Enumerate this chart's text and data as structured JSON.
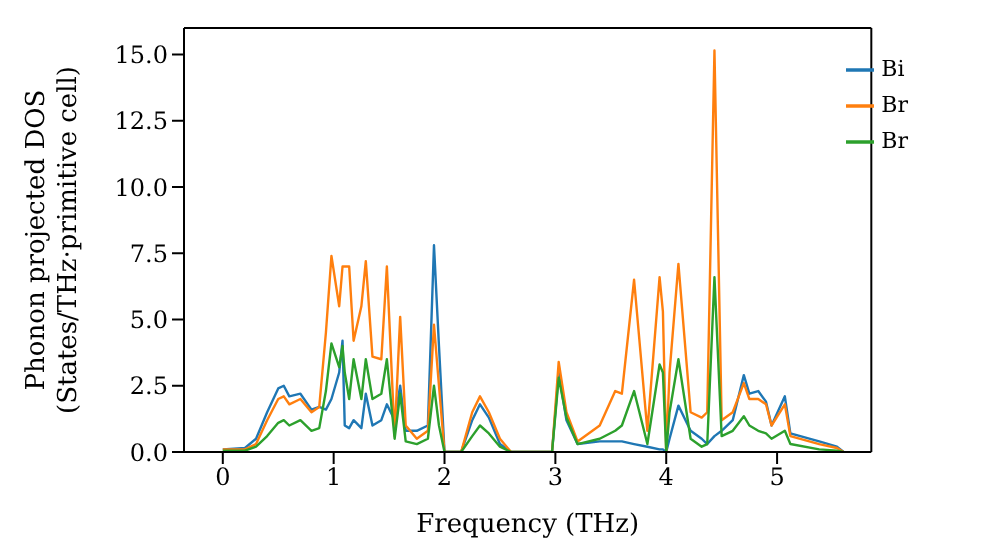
{
  "chart_data": {
    "type": "line",
    "xlabel": "Frequency (THz)",
    "ylabel": "Phonon projected DOS\n(States/THz·primitive cell)",
    "x": [
      0,
      0.2,
      0.3,
      0.4,
      0.5,
      0.55,
      0.6,
      0.7,
      0.8,
      0.87,
      0.93,
      0.98,
      1.05,
      1.08,
      1.1,
      1.14,
      1.18,
      1.25,
      1.29,
      1.35,
      1.43,
      1.48,
      1.55,
      1.6,
      1.65,
      1.75,
      1.85,
      1.905,
      1.95,
      2.0,
      2.15,
      2.25,
      2.32,
      2.4,
      2.5,
      2.6,
      2.97,
      3.03,
      3.1,
      3.2,
      3.4,
      3.54,
      3.6,
      3.71,
      3.83,
      3.94,
      3.97,
      4.0,
      4.03,
      4.11,
      4.22,
      4.32,
      4.37,
      4.435,
      4.5,
      4.6,
      4.7,
      4.75,
      4.83,
      4.9,
      4.95,
      5.07,
      5.12,
      5.38,
      5.54,
      5.6
    ],
    "series": [
      {
        "name": "Bi",
        "color": "#1f77b4",
        "values": [
          0.1,
          0.15,
          0.5,
          1.5,
          2.4,
          2.5,
          2.1,
          2.2,
          1.6,
          1.7,
          1.6,
          2.0,
          3.0,
          4.2,
          1.0,
          0.9,
          1.2,
          0.9,
          2.2,
          1.0,
          1.2,
          1.8,
          1.2,
          2.5,
          0.8,
          0.8,
          1.0,
          7.8,
          4.0,
          0,
          0,
          1.2,
          1.8,
          1.3,
          0.3,
          0,
          0,
          3.0,
          1.2,
          0.3,
          0.4,
          0.4,
          0.4,
          0.3,
          0.2,
          0.1,
          0.1,
          0,
          0.5,
          1.75,
          0.8,
          0.5,
          0.3,
          0.6,
          0.8,
          1.2,
          2.9,
          2.2,
          2.3,
          1.9,
          1.0,
          2.1,
          0.7,
          0.4,
          0.2,
          0
        ]
      },
      {
        "name": "Br",
        "color": "#ff7f0e",
        "values": [
          0.1,
          0.1,
          0.3,
          1.2,
          2.0,
          2.1,
          1.8,
          2.0,
          1.5,
          1.7,
          4.5,
          7.4,
          5.5,
          7.0,
          7.0,
          7.0,
          4.2,
          5.5,
          7.2,
          3.6,
          3.5,
          7.0,
          0.6,
          5.1,
          1.0,
          0.5,
          0.8,
          4.8,
          2.5,
          0,
          0,
          1.5,
          2.1,
          1.5,
          0.5,
          0,
          0,
          3.4,
          1.5,
          0.4,
          1.0,
          2.3,
          2.2,
          6.5,
          0.8,
          6.6,
          5.3,
          0,
          3.0,
          7.1,
          1.5,
          1.3,
          1.5,
          15.15,
          1.2,
          1.5,
          2.6,
          2.0,
          2.0,
          1.8,
          1.0,
          1.8,
          0.6,
          0.3,
          0.15,
          0
        ]
      },
      {
        "name": "Br",
        "color": "#2ca02c",
        "values": [
          0.05,
          0.05,
          0.2,
          0.6,
          1.1,
          1.2,
          1.0,
          1.2,
          0.8,
          0.9,
          2.3,
          4.1,
          3.2,
          4.0,
          3.0,
          2.0,
          3.5,
          2.0,
          3.5,
          2.0,
          2.2,
          3.5,
          0.5,
          2.2,
          0.4,
          0.3,
          0.5,
          2.5,
          1.0,
          0,
          0,
          0.6,
          1.0,
          0.7,
          0.2,
          0,
          0,
          2.8,
          1.3,
          0.3,
          0.5,
          0.8,
          1.0,
          2.3,
          0.3,
          3.3,
          3.0,
          0,
          1.5,
          3.5,
          0.5,
          0.2,
          0.3,
          6.6,
          0.6,
          0.8,
          1.35,
          1.0,
          0.8,
          0.7,
          0.5,
          0.8,
          0.3,
          0.1,
          0.05,
          0
        ]
      }
    ],
    "xlim": [
      -0.35,
      5.85
    ],
    "xticks": [
      0,
      1,
      2,
      3,
      4,
      5
    ],
    "ylim": [
      0,
      16
    ],
    "yticks": [
      {
        "value": 0,
        "label": "0.0"
      },
      {
        "value": 2.5,
        "label": "2.5"
      },
      {
        "value": 5,
        "label": "5.0"
      },
      {
        "value": 7.5,
        "label": "7.5"
      },
      {
        "value": 10,
        "label": "10.0"
      },
      {
        "value": 12.5,
        "label": "12.5"
      },
      {
        "value": 15,
        "label": "15.0"
      }
    ],
    "legend": "top right",
    "grid": false
  }
}
